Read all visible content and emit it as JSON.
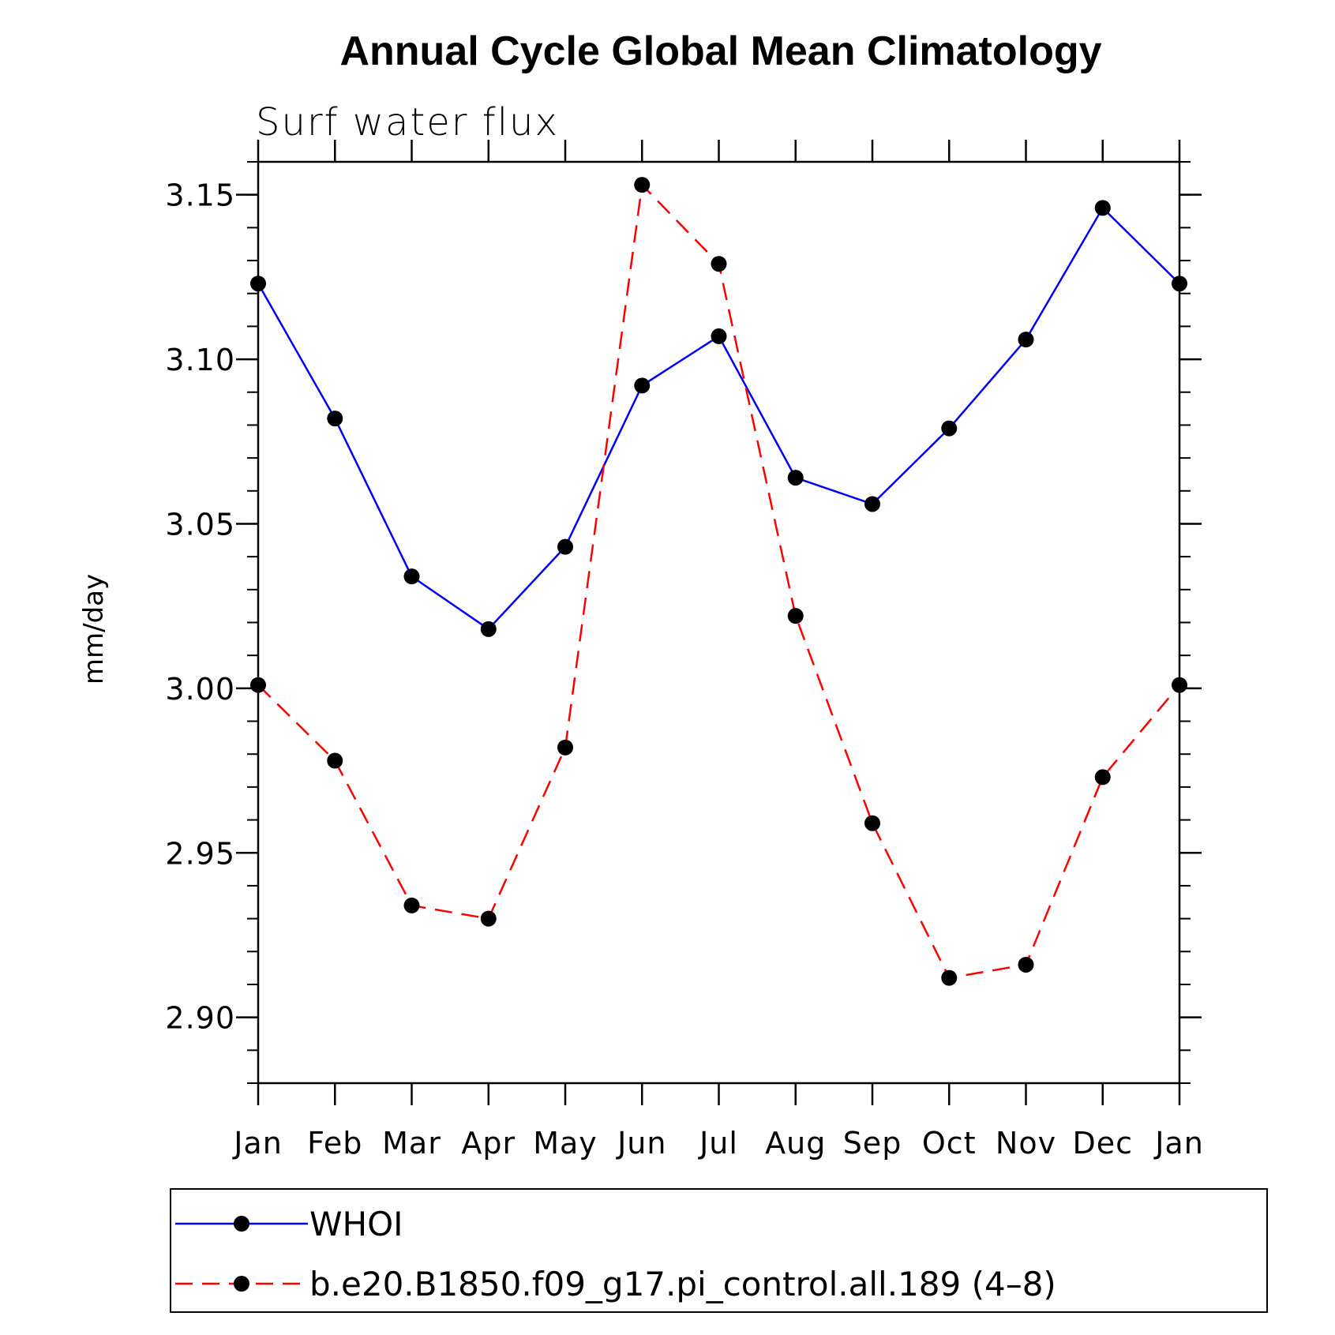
{
  "chart_data": {
    "type": "line",
    "title": "Annual Cycle Global Mean Climatology",
    "subtitle": "Surf water flux",
    "xlabel": "",
    "ylabel": "mm/day",
    "categories": [
      "Jan",
      "Feb",
      "Mar",
      "Apr",
      "May",
      "Jun",
      "Jul",
      "Aug",
      "Sep",
      "Oct",
      "Nov",
      "Dec",
      "Jan"
    ],
    "ylim": [
      2.88,
      3.16
    ],
    "yticks": [
      2.9,
      2.95,
      3.0,
      3.05,
      3.1,
      3.15
    ],
    "ytick_labels": [
      "2.90",
      "2.95",
      "3.00",
      "3.05",
      "3.10",
      "3.15"
    ],
    "grid": false,
    "legend_position": "bottom",
    "series": [
      {
        "name": "WHOI",
        "color": "#0000ff",
        "style": "solid",
        "values": [
          3.123,
          3.082,
          3.034,
          3.018,
          3.043,
          3.092,
          3.107,
          3.064,
          3.056,
          3.079,
          3.106,
          3.146,
          3.123
        ]
      },
      {
        "name": "b.e20.B1850.f09_g17.pi_control.all.189 (4–8)",
        "color": "#ff0000",
        "style": "dashed",
        "values": [
          3.001,
          2.978,
          2.934,
          2.93,
          2.982,
          3.153,
          3.129,
          3.022,
          2.959,
          2.912,
          2.916,
          2.973,
          3.001
        ]
      }
    ]
  }
}
